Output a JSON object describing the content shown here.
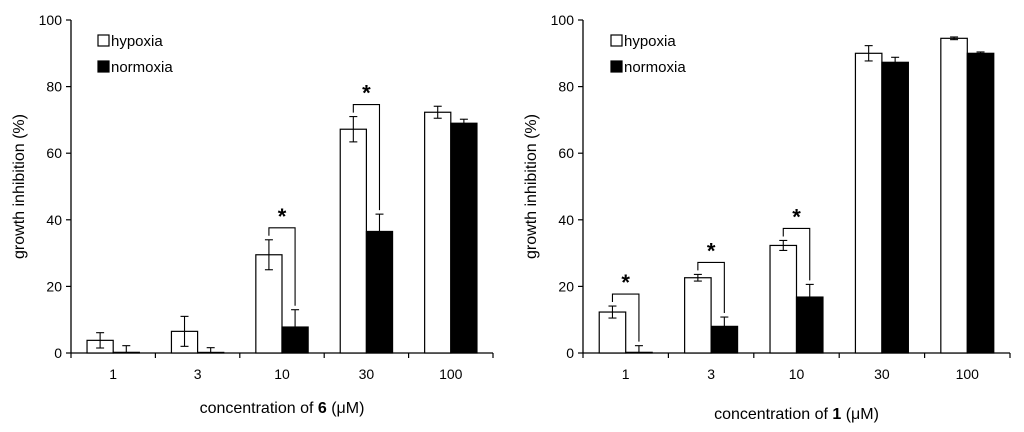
{
  "chart_data": [
    {
      "type": "bar",
      "categories": [
        "1",
        "3",
        "10",
        "30",
        "100"
      ],
      "series": [
        {
          "name": "hypoxia",
          "values": [
            3.8,
            6.5,
            29.5,
            67.2,
            72.3
          ],
          "errors": [
            2.3,
            4.5,
            4.5,
            3.8,
            1.8
          ],
          "color": "#ffffff"
        },
        {
          "name": "normoxia",
          "values": [
            0.2,
            0.1,
            7.8,
            36.5,
            69.0
          ],
          "errors": [
            2.0,
            1.5,
            5.2,
            5.2,
            1.2
          ],
          "color": "#000000"
        }
      ],
      "significant": [
        false,
        false,
        true,
        true,
        false
      ],
      "significance_mark": "*",
      "ylim": [
        0,
        100
      ],
      "yticks": [
        0,
        20,
        40,
        60,
        80,
        100
      ],
      "ylabel": "growth inhibition (%)",
      "xlabel_prefix": "concentration of ",
      "xlabel_bold": "6",
      "xlabel_suffix": " (μM)",
      "legend_position": "top-left"
    },
    {
      "type": "bar",
      "categories": [
        "1",
        "3",
        "10",
        "30",
        "100"
      ],
      "series": [
        {
          "name": "hypoxia",
          "values": [
            12.3,
            22.6,
            32.3,
            90.0,
            94.5
          ],
          "errors": [
            1.8,
            1.0,
            1.5,
            2.3,
            0.4
          ],
          "color": "#ffffff"
        },
        {
          "name": "normoxia",
          "values": [
            0.2,
            8.0,
            16.8,
            87.3,
            90.0
          ],
          "errors": [
            2.0,
            2.8,
            3.8,
            1.5,
            0.4
          ],
          "color": "#000000"
        }
      ],
      "significant": [
        true,
        true,
        true,
        false,
        false
      ],
      "significance_mark": "*",
      "ylim": [
        0,
        100
      ],
      "yticks": [
        0,
        20,
        40,
        60,
        80,
        100
      ],
      "ylabel": "growth inhibition (%)",
      "xlabel_prefix": "concentration of ",
      "xlabel_bold": "1",
      "xlabel_suffix": " (μM)",
      "legend_position": "top-left"
    }
  ]
}
